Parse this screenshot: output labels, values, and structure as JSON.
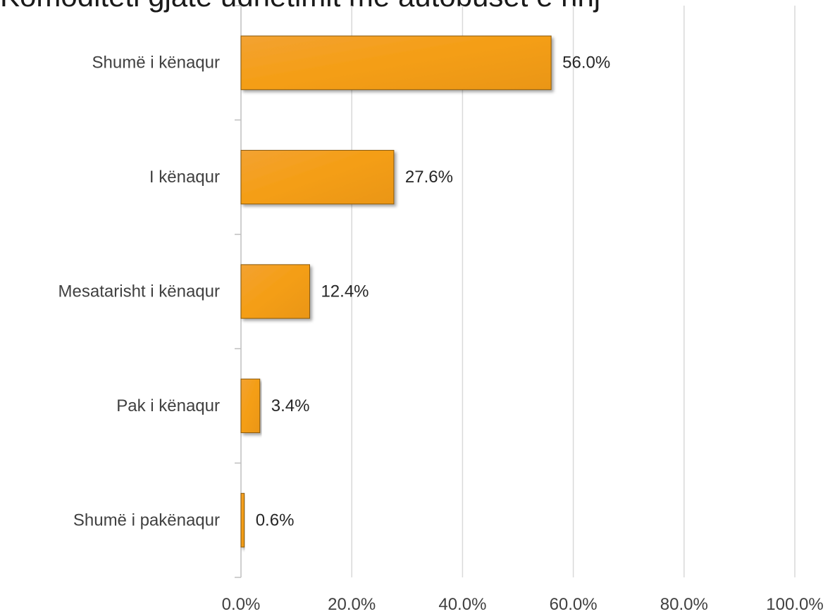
{
  "chart_data": {
    "type": "bar",
    "orientation": "horizontal",
    "title": "Komoditeti gjatë udhëtimit me autobusët e rinj",
    "categories": [
      "Shumë i kënaqur",
      "I kënaqur",
      "Mesatarisht i kënaqur",
      "Pak i kënaqur",
      "Shumë i pakënaqur"
    ],
    "values": [
      56.0,
      27.6,
      12.4,
      3.4,
      0.6
    ],
    "value_labels": [
      "56.0%",
      "27.6%",
      "12.4%",
      "3.4%",
      "0.6%"
    ],
    "xlim": [
      0,
      100
    ],
    "x_ticks": [
      0,
      20,
      40,
      60,
      80,
      100
    ],
    "x_tick_labels": [
      "0.0%",
      "20.0%",
      "40.0%",
      "60.0%",
      "80.0%",
      "100.0%"
    ],
    "grid": true,
    "legend": "none",
    "colors": {
      "bar": "#F29D13",
      "bar_border": "#8a5a10",
      "grid": "#d9d9d9",
      "axis": "#bfbfbf"
    }
  }
}
